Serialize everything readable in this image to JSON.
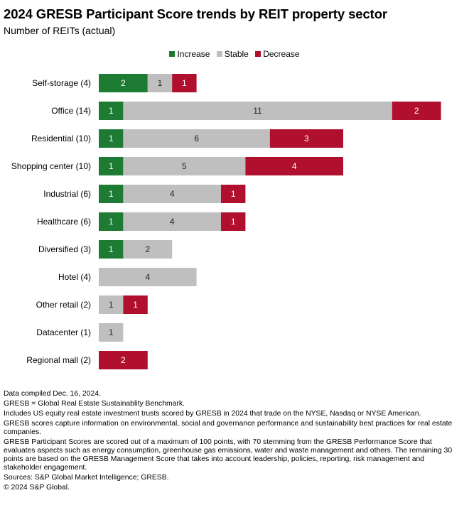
{
  "title": "2024 GRESB Participant Score trends by REIT property sector",
  "subtitle": "Number of REITs (actual)",
  "colors": {
    "increase": "#1e7b34",
    "stable": "#bfbfbf",
    "decrease": "#b10f2e"
  },
  "chart_data": {
    "type": "bar",
    "orientation": "horizontal",
    "stacked": true,
    "title": "2024 GRESB Participant Score trends by REIT property sector",
    "subtitle": "Number of REITs (actual)",
    "xlabel": "",
    "ylabel": "",
    "xlim": [
      0,
      14
    ],
    "grid": false,
    "legend_position": "top-center",
    "categories": [
      "Self-storage (4)",
      "Office (14)",
      "Residential (10)",
      "Shopping center (10)",
      "Industrial (6)",
      "Healthcare (6)",
      "Diversified (3)",
      "Hotel (4)",
      "Other retail (2)",
      "Datacenter (1)",
      "Regional mall (2)"
    ],
    "series": [
      {
        "name": "Increase",
        "values": [
          2,
          1,
          1,
          1,
          1,
          1,
          1,
          0,
          0,
          0,
          0
        ]
      },
      {
        "name": "Stable",
        "values": [
          1,
          11,
          6,
          5,
          4,
          4,
          2,
          4,
          1,
          1,
          0
        ]
      },
      {
        "name": "Decrease",
        "values": [
          1,
          2,
          3,
          4,
          1,
          1,
          0,
          0,
          1,
          0,
          2
        ]
      }
    ]
  },
  "notes": [
    "Data compiled Dec. 16, 2024.",
    "GRESB = Global Real Estate Sustainablity Benchmark.",
    "Includes US equity real estate investment trusts scored by GRESB in 2024 that trade on the NYSE, Nasdaq or NYSE American.",
    "GRESB scores capture information on environmental, social and governance performance and sustainability best practices for real estate companies.",
    "GRESB Participant Scores are scored out of a maximum of 100 points, with 70 stemming from the GRESB Performance Score that evaluates aspects such as energy consumption, greenhouse gas emissions, water and waste management and others. The remaining 30 points are based on the GRESB Management Score that takes into account leadership, policies, reporting, risk management and stakeholder engagement.",
    "Sources: S&P Global Market Intelligence; GRESB.",
    "© 2024 S&P Global."
  ]
}
